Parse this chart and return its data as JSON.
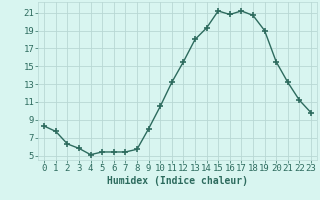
{
  "x": [
    0,
    1,
    2,
    3,
    4,
    5,
    6,
    7,
    8,
    9,
    10,
    11,
    12,
    13,
    14,
    15,
    16,
    17,
    18,
    19,
    20,
    21,
    22,
    23
  ],
  "y": [
    8.3,
    7.7,
    6.3,
    5.8,
    5.1,
    5.4,
    5.4,
    5.4,
    5.7,
    8.0,
    10.5,
    13.2,
    15.5,
    18.0,
    19.3,
    21.2,
    20.8,
    21.2,
    20.7,
    19.0,
    15.5,
    13.2,
    11.2,
    9.8
  ],
  "xlabel": "Humidex (Indice chaleur)",
  "xlim": [
    -0.5,
    23.5
  ],
  "ylim": [
    4.5,
    22.2
  ],
  "yticks": [
    5,
    7,
    9,
    11,
    13,
    15,
    17,
    19,
    21
  ],
  "xticks": [
    0,
    1,
    2,
    3,
    4,
    5,
    6,
    7,
    8,
    9,
    10,
    11,
    12,
    13,
    14,
    15,
    16,
    17,
    18,
    19,
    20,
    21,
    22,
    23
  ],
  "line_color": "#2d6b5e",
  "marker": "+",
  "marker_size": 4.0,
  "marker_lw": 1.2,
  "line_width": 1.0,
  "bg_color": "#d8f5f0",
  "grid_color": "#b8d8d4",
  "xlabel_fontsize": 7,
  "tick_fontsize": 6.5
}
